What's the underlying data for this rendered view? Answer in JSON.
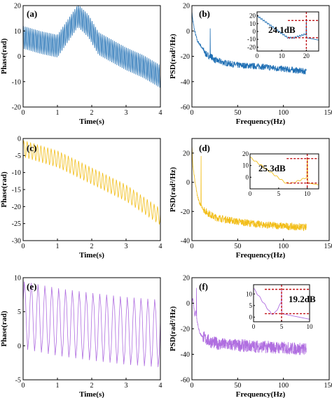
{
  "colors": {
    "row1": "#1f6fb4",
    "row2": "#f2be1a",
    "row3": "#b06ee0",
    "marker": "#c0151a"
  },
  "chart_data": [
    {
      "id": "a",
      "type": "line",
      "panel_label": "(a)",
      "xlabel": "Time(s)",
      "ylabel": "Phase(rad)",
      "xlim": [
        0,
        4
      ],
      "ylim": [
        -20,
        20
      ],
      "xticks": [
        0,
        1,
        2,
        3,
        4
      ],
      "yticks": [
        -20,
        -10,
        0,
        10,
        20
      ],
      "color_key": "row1",
      "series": [
        {
          "trend_x": [
            0,
            0.5,
            1.0,
            1.3,
            1.6,
            1.9,
            2.2,
            2.6,
            3.0,
            3.5,
            4.0
          ],
          "trend_y": [
            7.5,
            5.5,
            4,
            10,
            16,
            12,
            5,
            2,
            -1,
            -4,
            -8
          ],
          "oscillation_hz": 20,
          "amplitude": 4.5
        }
      ]
    },
    {
      "id": "b",
      "type": "line",
      "panel_label": "(b)",
      "xlabel": "Frequency(Hz)",
      "ylabel": "PSD(rad²/Hz)",
      "xlim": [
        0,
        150
      ],
      "ylim": [
        -60,
        20
      ],
      "xticks": [
        0,
        50,
        100,
        150
      ],
      "yticks": [
        -60,
        -40,
        -20,
        0,
        20
      ],
      "xtick_labels": [
        "0",
        "50",
        "100",
        "150"
      ],
      "color_key": "row1",
      "series": [
        {
          "x": [
            0,
            1,
            3,
            6,
            10,
            15,
            19,
            20,
            21,
            25,
            35,
            50,
            75,
            100,
            125
          ],
          "y": [
            15,
            8,
            0,
            -8,
            -12,
            -18,
            -20,
            2,
            -20,
            -23,
            -25,
            -27,
            -28,
            -30,
            -32
          ]
        }
      ],
      "inset": {
        "xlim": [
          0,
          25
        ],
        "ylim": [
          -25,
          25
        ],
        "xticks": [
          0,
          10,
          20
        ],
        "yticks": [
          -20,
          -10,
          0,
          10,
          20
        ],
        "annotation": "24.1dB",
        "peak_x": 20,
        "top_level": 14,
        "base_level": -8
      }
    },
    {
      "id": "c",
      "type": "line",
      "panel_label": "(c)",
      "xlabel": "Time(s)",
      "ylabel": "Phase(rad)",
      "xlim": [
        0,
        4
      ],
      "ylim": [
        -30,
        0
      ],
      "xticks": [
        0,
        1,
        2,
        3,
        4
      ],
      "yticks": [
        -30,
        -25,
        -20,
        -15,
        -10,
        -5,
        0
      ],
      "color_key": "row2",
      "series": [
        {
          "trend_x": [
            0,
            1,
            2,
            3,
            4
          ],
          "trend_y": [
            -3,
            -6,
            -11,
            -16,
            -23
          ],
          "oscillation_hz": 10,
          "amplitude": 2.5
        }
      ]
    },
    {
      "id": "d",
      "type": "line",
      "panel_label": "(d)",
      "xlabel": "Frequency(Hz)",
      "ylabel": "PSD(rad²/Hz)",
      "xlim": [
        0,
        150
      ],
      "ylim": [
        -40,
        30
      ],
      "xticks": [
        0,
        50,
        100,
        150
      ],
      "yticks": [
        -40,
        -20,
        0,
        20
      ],
      "xtick_labels": [
        "0",
        "50",
        "100",
        "150"
      ],
      "color_key": "row2",
      "series": [
        {
          "x": [
            0,
            1,
            3,
            6,
            9,
            10,
            11,
            15,
            25,
            50,
            75,
            100,
            125
          ],
          "y": [
            26,
            12,
            2,
            -10,
            -15,
            18,
            -17,
            -20,
            -24,
            -27,
            -29,
            -30,
            -31
          ]
        }
      ],
      "inset": {
        "xlim": [
          0,
          12
        ],
        "ylim": [
          -10,
          20
        ],
        "xticks": [
          0,
          5,
          10
        ],
        "yticks": [
          0,
          10,
          20
        ],
        "annotation": "25.3dB",
        "peak_x": 10,
        "top_level": 16,
        "base_level": -5
      }
    },
    {
      "id": "e",
      "type": "line",
      "panel_label": "(e)",
      "xlabel": "Time(s)",
      "ylabel": "Phase(rad)",
      "xlim": [
        0,
        4
      ],
      "ylim": [
        -5,
        10
      ],
      "xticks": [
        0,
        1,
        2,
        3,
        4
      ],
      "yticks": [
        -5,
        0,
        5,
        10
      ],
      "color_key": "row3",
      "series": [
        {
          "trend_x": [
            0,
            1,
            2,
            3,
            4
          ],
          "trend_y": [
            4.5,
            3.5,
            2.8,
            2.2,
            1.8
          ],
          "oscillation_hz": 5,
          "amplitude": 5
        }
      ]
    },
    {
      "id": "f",
      "type": "line",
      "panel_label": "(f)",
      "xlabel": "Frequency(Hz)",
      "ylabel": "PSD(rad²/Hz)",
      "xlim": [
        0,
        150
      ],
      "ylim": [
        -60,
        20
      ],
      "xticks": [
        0,
        50,
        100,
        150
      ],
      "yticks": [
        -60,
        -40,
        -20,
        0,
        20
      ],
      "xtick_labels": [
        "0",
        "50",
        "100",
        "150"
      ],
      "color_key": "row3",
      "series": [
        {
          "x": [
            0,
            1,
            2,
            3,
            4,
            5,
            6,
            8,
            10,
            15,
            20,
            30,
            50,
            75,
            100,
            125
          ],
          "y": [
            0,
            5,
            -2,
            -10,
            -6,
            12,
            -15,
            -22,
            -25,
            -28,
            -30,
            -32,
            -33,
            -34,
            -35,
            -36
          ]
        }
      ],
      "inset": {
        "xlim": [
          0,
          10
        ],
        "ylim": [
          -2,
          14
        ],
        "xticks": [
          0,
          5,
          10
        ],
        "yticks": [
          0,
          5,
          10
        ],
        "annotation": "19.2dB",
        "peak_x": 5,
        "top_level": 12,
        "base_level": 1.5
      }
    }
  ]
}
